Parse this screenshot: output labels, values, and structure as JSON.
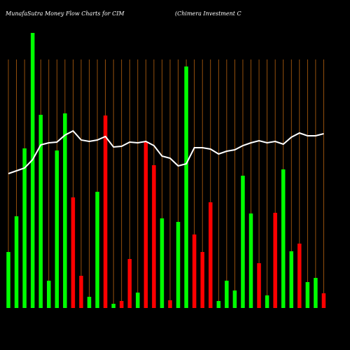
{
  "chart_data": {
    "type": "bar",
    "title": "MunafaSutra  Money Flow  Charts for CIM",
    "subtitle": "(Chimera  Investment C",
    "ylim": [
      0,
      400
    ],
    "grid": true,
    "grid_color": "#b8620f",
    "line_color": "#ffffff",
    "values": [
      80,
      131,
      228,
      393,
      276,
      39,
      225,
      278,
      158,
      46,
      16,
      166,
      275,
      6,
      10,
      70,
      22,
      237,
      204,
      128,
      11,
      123,
      345,
      105,
      80,
      151,
      10,
      39,
      25,
      189,
      135,
      64,
      18,
      136,
      198,
      81,
      92,
      37,
      43,
      21
    ],
    "colors": [
      "#00ff00",
      "#00ff00",
      "#00ff00",
      "#00ff00",
      "#00ff00",
      "#00ff00",
      "#00ff00",
      "#00ff00",
      "#ff0000",
      "#ff0000",
      "#00ff00",
      "#00ff00",
      "#ff0000",
      "#00ff00",
      "#ff0000",
      "#ff0000",
      "#00ff00",
      "#ff0000",
      "#ff0000",
      "#00ff00",
      "#ff0000",
      "#00ff00",
      "#00ff00",
      "#ff0000",
      "#ff0000",
      "#ff0000",
      "#00ff00",
      "#00ff00",
      "#00ff00",
      "#00ff00",
      "#00ff00",
      "#ff0000",
      "#00ff00",
      "#ff0000",
      "#00ff00",
      "#00ff00",
      "#ff0000",
      "#00ff00",
      "#00ff00",
      "#ff0000"
    ],
    "line_values": [
      192,
      196,
      200,
      212,
      233,
      236,
      237,
      247,
      253,
      240,
      238,
      240,
      245,
      230,
      231,
      237,
      236,
      238,
      232,
      217,
      214,
      203,
      206,
      229,
      229,
      227,
      220,
      224,
      226,
      232,
      236,
      239,
      236,
      238,
      234,
      244,
      250,
      246,
      246,
      249
    ]
  }
}
